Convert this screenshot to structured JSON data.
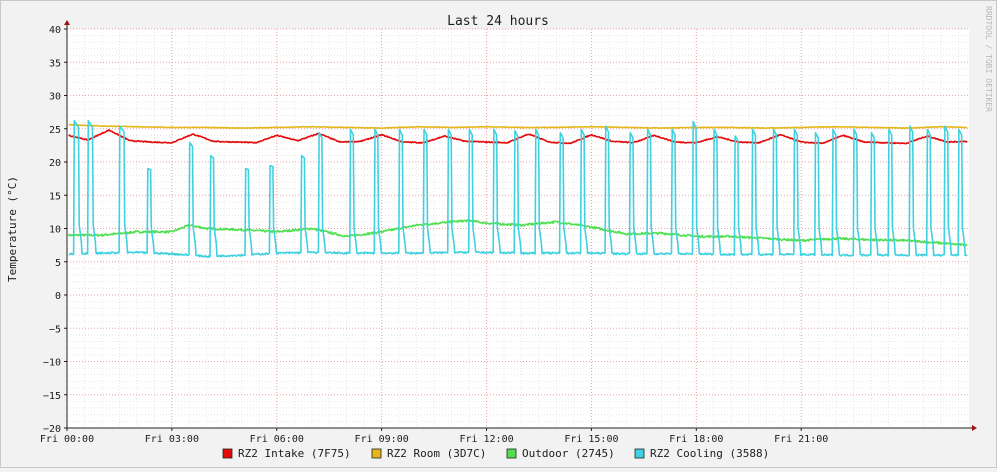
{
  "chart_data": {
    "type": "line",
    "title": "Last 24 hours",
    "ylabel": "Temperature (°C)",
    "xlabel": "",
    "watermark": "RRDTOOL / TOBI OETIKER",
    "ylim": [
      -20,
      40
    ],
    "y_ticks": [
      40,
      35,
      30,
      25,
      20,
      15,
      10,
      5,
      0,
      -5,
      -10,
      -15,
      -20
    ],
    "y_tick_labels": [
      "40",
      "35",
      "30",
      "25",
      "20",
      "15",
      "10",
      "5",
      "0",
      "−5",
      "−10",
      "−15",
      "−20"
    ],
    "x_unit": "hours since Fri 00:00",
    "xlim": [
      0,
      25.8
    ],
    "x_ticks": [
      0,
      3,
      6,
      9,
      12,
      15,
      18,
      21
    ],
    "x_tick_labels": [
      "Fri 00:00",
      "Fri 03:00",
      "Fri 06:00",
      "Fri 09:00",
      "Fri 12:00",
      "Fri 15:00",
      "Fri 18:00",
      "Fri 21:00"
    ],
    "grid": true,
    "legend_position": "bottom",
    "colors": {
      "background": "#f2f2f2",
      "plot_area": "#ffffff",
      "major_grid": "#e8a0a0",
      "minor_grid": "#e6e6e6",
      "axis": "#202020",
      "arrow": "#a01010"
    },
    "series": [
      {
        "name": "RZ2 Intake (7F75)",
        "color": "#e30b0b",
        "base": 23.0,
        "peak": 25.0,
        "decay": 0.8,
        "noise": 0.15,
        "x": [
          0.05,
          0.6,
          1.2,
          1.8,
          2.4,
          3.0,
          3.6,
          4.2,
          4.8,
          5.4,
          6.0,
          6.6,
          7.2,
          7.8,
          8.4,
          9.0,
          9.6,
          10.2,
          10.8,
          11.4,
          12.0,
          12.6,
          13.2,
          13.8,
          14.4,
          15.0,
          15.6,
          16.2,
          16.8,
          17.4,
          18.0,
          18.6,
          19.2,
          19.8,
          20.4,
          21.0,
          21.6,
          22.2,
          22.8,
          23.4,
          24.0,
          24.6,
          25.2,
          25.7
        ],
        "y": [
          24.0,
          23.3,
          24.8,
          23.2,
          23.0,
          22.9,
          24.2,
          23.1,
          23.0,
          22.9,
          24.0,
          23.2,
          24.3,
          23.0,
          23.1,
          24.1,
          23.0,
          22.9,
          23.9,
          23.1,
          23.0,
          22.9,
          24.2,
          23.0,
          22.8,
          24.1,
          23.1,
          22.9,
          24.0,
          23.0,
          22.9,
          23.8,
          23.0,
          22.9,
          24.1,
          23.0,
          22.8,
          24.0,
          23.0,
          22.9,
          22.8,
          23.9,
          23.0,
          23.1
        ]
      },
      {
        "name": "RZ2 Room (3D7C)",
        "color": "#e6b71a",
        "base": 25.2,
        "peak": 26.0,
        "decay": 1.2,
        "noise": 0.08,
        "x": [
          0.05,
          1.0,
          2.0,
          3.0,
          4.0,
          5.0,
          6.0,
          7.0,
          8.0,
          9.0,
          10.0,
          11.0,
          12.0,
          13.0,
          14.0,
          15.0,
          16.0,
          17.0,
          18.0,
          19.0,
          20.0,
          21.0,
          22.0,
          23.0,
          24.0,
          25.0,
          25.7
        ],
        "y": [
          25.6,
          25.4,
          25.3,
          25.2,
          25.2,
          25.1,
          25.2,
          25.3,
          25.2,
          25.1,
          25.3,
          25.2,
          25.3,
          25.2,
          25.2,
          25.3,
          25.2,
          25.1,
          25.2,
          25.2,
          25.1,
          25.2,
          25.3,
          25.2,
          25.1,
          25.3,
          25.2
        ]
      },
      {
        "name": "Outdoor (2745)",
        "color": "#4fe04f",
        "noise": 0.3,
        "x": [
          0.05,
          1.0,
          2.0,
          3.0,
          3.5,
          4.0,
          5.0,
          6.0,
          7.0,
          8.0,
          9.0,
          10.0,
          11.0,
          11.5,
          12.0,
          13.0,
          14.0,
          15.0,
          16.0,
          17.0,
          18.0,
          19.0,
          20.0,
          21.0,
          22.0,
          23.0,
          24.0,
          25.0,
          25.7
        ],
        "y": [
          9.0,
          9.0,
          9.5,
          9.5,
          10.5,
          10.0,
          9.8,
          9.5,
          10.0,
          8.8,
          9.5,
          10.5,
          11.0,
          11.2,
          10.8,
          10.5,
          11.0,
          10.2,
          9.2,
          9.3,
          8.8,
          8.8,
          8.5,
          8.2,
          8.5,
          8.3,
          8.2,
          7.8,
          7.5
        ]
      },
      {
        "name": "RZ2 Cooling (3588)",
        "color": "#3fd1e0",
        "base": 6.0,
        "noise": 0.25,
        "x": [
          0.05,
          1.0,
          2.0,
          3.0,
          4.0,
          5.0,
          6.0,
          7.0,
          8.0,
          9.0,
          10.0,
          11.0,
          12.0,
          13.0,
          14.0,
          15.0,
          16.0,
          17.0,
          18.0,
          19.0,
          20.0,
          21.0,
          22.0,
          23.0,
          24.0,
          25.0,
          25.7
        ],
        "y": [
          6.2,
          6.3,
          6.4,
          6.2,
          5.8,
          6.0,
          6.3,
          6.4,
          6.3,
          6.3,
          6.3,
          6.4,
          6.4,
          6.3,
          6.3,
          6.3,
          6.2,
          6.2,
          6.2,
          6.1,
          6.1,
          6.1,
          6.0,
          6.0,
          6.0,
          6.0,
          6.0
        ],
        "spikes": [
          {
            "x": 0.2,
            "top": 26.3,
            "width": 0.15
          },
          {
            "x": 0.6,
            "top": 26.3,
            "width": 0.15
          },
          {
            "x": 1.5,
            "top": 25.5,
            "width": 0.15
          },
          {
            "x": 2.3,
            "top": 19.0,
            "width": 0.1
          },
          {
            "x": 3.5,
            "top": 23.0,
            "width": 0.1
          },
          {
            "x": 4.1,
            "top": 21.0,
            "width": 0.1
          },
          {
            "x": 5.1,
            "top": 19.0,
            "width": 0.1
          },
          {
            "x": 5.8,
            "top": 19.5,
            "width": 0.1
          },
          {
            "x": 6.7,
            "top": 21.0,
            "width": 0.1
          },
          {
            "x": 7.2,
            "top": 24.5,
            "width": 0.1
          },
          {
            "x": 8.1,
            "top": 25.0,
            "width": 0.1
          },
          {
            "x": 8.8,
            "top": 25.0,
            "width": 0.1
          },
          {
            "x": 9.5,
            "top": 25.0,
            "width": 0.1
          },
          {
            "x": 10.2,
            "top": 25.0,
            "width": 0.1
          },
          {
            "x": 10.9,
            "top": 25.0,
            "width": 0.1
          },
          {
            "x": 11.5,
            "top": 25.0,
            "width": 0.1
          },
          {
            "x": 12.2,
            "top": 25.0,
            "width": 0.1
          },
          {
            "x": 12.8,
            "top": 24.8,
            "width": 0.1
          },
          {
            "x": 13.4,
            "top": 25.0,
            "width": 0.1
          },
          {
            "x": 14.1,
            "top": 24.5,
            "width": 0.1
          },
          {
            "x": 14.7,
            "top": 25.0,
            "width": 0.1
          },
          {
            "x": 15.4,
            "top": 25.5,
            "width": 0.1
          },
          {
            "x": 16.1,
            "top": 24.5,
            "width": 0.1
          },
          {
            "x": 16.6,
            "top": 25.0,
            "width": 0.1
          },
          {
            "x": 17.3,
            "top": 25.0,
            "width": 0.1
          },
          {
            "x": 17.9,
            "top": 26.2,
            "width": 0.1
          },
          {
            "x": 18.5,
            "top": 25.0,
            "width": 0.1
          },
          {
            "x": 19.1,
            "top": 24.0,
            "width": 0.1
          },
          {
            "x": 19.6,
            "top": 25.0,
            "width": 0.1
          },
          {
            "x": 20.2,
            "top": 25.0,
            "width": 0.1
          },
          {
            "x": 20.8,
            "top": 25.0,
            "width": 0.1
          },
          {
            "x": 21.4,
            "top": 24.5,
            "width": 0.1
          },
          {
            "x": 21.9,
            "top": 25.0,
            "width": 0.1
          },
          {
            "x": 22.5,
            "top": 25.0,
            "width": 0.1
          },
          {
            "x": 23.0,
            "top": 24.5,
            "width": 0.1
          },
          {
            "x": 23.5,
            "top": 25.0,
            "width": 0.1
          },
          {
            "x": 24.1,
            "top": 25.5,
            "width": 0.1
          },
          {
            "x": 24.6,
            "top": 25.0,
            "width": 0.1
          },
          {
            "x": 25.1,
            "top": 25.5,
            "width": 0.1
          },
          {
            "x": 25.5,
            "top": 25.0,
            "width": 0.1
          }
        ]
      }
    ]
  }
}
